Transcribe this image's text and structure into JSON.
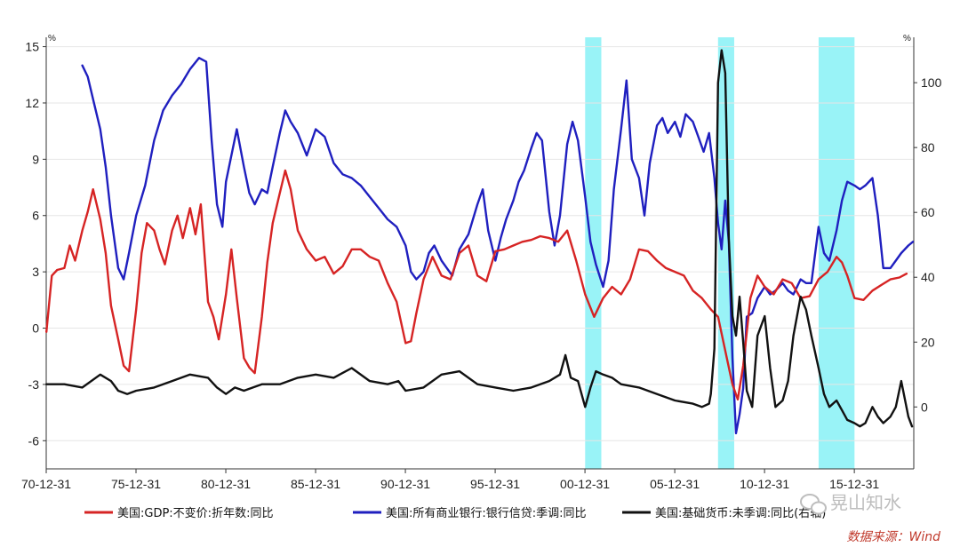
{
  "chart_data": {
    "type": "line",
    "left_unit": "%",
    "right_unit": "%",
    "ylim_left": [
      -7.5,
      15.5
    ],
    "ylim_right": [
      -19.09,
      114
    ],
    "yticks_left": [
      -6,
      -3,
      0,
      3,
      6,
      9,
      12,
      15
    ],
    "yticks_left_labels": [
      "-6",
      "-3",
      "0",
      "3",
      "6",
      "9",
      "12",
      "15"
    ],
    "yticks_right": [
      0,
      20,
      40,
      60,
      80,
      100
    ],
    "yticks_right_labels": [
      "0",
      "20",
      "40",
      "60",
      "80",
      "100"
    ],
    "xlim": [
      1970.99,
      2019.3
    ],
    "xticks": [
      1970.99,
      1975.99,
      1980.99,
      1985.99,
      1990.99,
      1995.99,
      2000.99,
      2005.99,
      2010.99,
      2015.99
    ],
    "xtick_labels": [
      "70-12-31",
      "75-12-31",
      "80-12-31",
      "85-12-31",
      "90-12-31",
      "95-12-31",
      "00-12-31",
      "05-12-31",
      "10-12-31",
      "15-12-31"
    ],
    "shaded_periods": [
      [
        2001.0,
        2001.9
      ],
      [
        2008.4,
        2009.3
      ],
      [
        2014.0,
        2016.0
      ]
    ],
    "shade_color": "#99f3f7",
    "series": [
      {
        "name": "美国:GDP:不变价:折年数:同比",
        "axis": "left",
        "color": "#d62424",
        "x": [
          1971.0,
          1971.3,
          1971.6,
          1972.0,
          1972.3,
          1972.6,
          1973.0,
          1973.3,
          1973.6,
          1974.0,
          1974.3,
          1974.6,
          1975.0,
          1975.3,
          1975.6,
          1976.0,
          1976.3,
          1976.6,
          1977.0,
          1977.3,
          1977.6,
          1978.0,
          1978.3,
          1978.6,
          1979.0,
          1979.3,
          1979.6,
          1980.0,
          1980.3,
          1980.6,
          1981.0,
          1981.3,
          1981.6,
          1982.0,
          1982.3,
          1982.6,
          1983.0,
          1983.3,
          1983.6,
          1984.0,
          1984.3,
          1984.6,
          1985.0,
          1985.5,
          1986.0,
          1986.5,
          1987.0,
          1987.5,
          1988.0,
          1988.5,
          1989.0,
          1989.5,
          1990.0,
          1990.5,
          1991.0,
          1991.3,
          1991.6,
          1992.0,
          1992.5,
          1993.0,
          1993.5,
          1994.0,
          1994.5,
          1995.0,
          1995.5,
          1996.0,
          1996.5,
          1997.0,
          1997.5,
          1998.0,
          1998.5,
          1999.0,
          1999.5,
          2000.0,
          2000.5,
          2001.0,
          2001.5,
          2002.0,
          2002.5,
          2003.0,
          2003.5,
          2004.0,
          2004.5,
          2005.0,
          2005.5,
          2006.0,
          2006.5,
          2007.0,
          2007.5,
          2008.0,
          2008.4,
          2008.8,
          2009.2,
          2009.5,
          2009.8,
          2010.2,
          2010.6,
          2011.0,
          2011.5,
          2012.0,
          2012.5,
          2013.0,
          2013.5,
          2014.0,
          2014.5,
          2015.0,
          2015.3,
          2015.6,
          2016.0,
          2016.5,
          2017.0,
          2017.5,
          2018.0,
          2018.5,
          2018.9
        ],
        "values": [
          -0.2,
          2.8,
          3.1,
          3.2,
          4.4,
          3.6,
          5.2,
          6.2,
          7.4,
          5.8,
          4.0,
          1.2,
          -0.6,
          -2.0,
          -2.3,
          1.0,
          4.0,
          5.6,
          5.2,
          4.2,
          3.4,
          5.2,
          6.0,
          4.8,
          6.4,
          5.0,
          6.6,
          1.4,
          0.6,
          -0.6,
          1.8,
          4.2,
          1.6,
          -1.6,
          -2.1,
          -2.4,
          0.6,
          3.5,
          5.6,
          7.2,
          8.4,
          7.4,
          5.2,
          4.2,
          3.6,
          3.8,
          2.9,
          3.3,
          4.2,
          4.2,
          3.8,
          3.6,
          2.4,
          1.4,
          -0.8,
          -0.7,
          0.8,
          2.6,
          3.8,
          2.8,
          2.6,
          4.0,
          4.4,
          2.8,
          2.5,
          4.1,
          4.2,
          4.4,
          4.6,
          4.7,
          4.9,
          4.8,
          4.6,
          5.2,
          3.6,
          1.8,
          0.6,
          1.6,
          2.2,
          1.8,
          2.6,
          4.2,
          4.1,
          3.6,
          3.2,
          3.0,
          2.8,
          2.0,
          1.6,
          1.0,
          0.6,
          -1.2,
          -3.0,
          -3.8,
          -2.0,
          1.6,
          2.8,
          2.2,
          1.8,
          2.6,
          2.4,
          1.6,
          1.7,
          2.6,
          3.0,
          3.8,
          3.5,
          2.8,
          1.6,
          1.5,
          2.0,
          2.3,
          2.6,
          2.7,
          2.9
        ]
      },
      {
        "name": "美国:所有商业银行:银行信贷:季调:同比",
        "axis": "left",
        "color": "#1f1fbf",
        "x": [
          1973.0,
          1973.3,
          1973.6,
          1974.0,
          1974.3,
          1974.6,
          1975.0,
          1975.3,
          1975.6,
          1976.0,
          1976.5,
          1977.0,
          1977.5,
          1978.0,
          1978.5,
          1979.0,
          1979.5,
          1979.9,
          1980.2,
          1980.5,
          1980.8,
          1981.0,
          1981.3,
          1981.6,
          1982.0,
          1982.3,
          1982.6,
          1983.0,
          1983.3,
          1983.6,
          1984.0,
          1984.3,
          1984.6,
          1985.0,
          1985.5,
          1986.0,
          1986.5,
          1987.0,
          1987.5,
          1988.0,
          1988.5,
          1989.0,
          1989.5,
          1990.0,
          1990.5,
          1991.0,
          1991.3,
          1991.6,
          1992.0,
          1992.3,
          1992.6,
          1993.0,
          1993.3,
          1993.6,
          1994.0,
          1994.5,
          1995.0,
          1995.3,
          1995.6,
          1996.0,
          1996.3,
          1996.6,
          1997.0,
          1997.3,
          1997.6,
          1998.0,
          1998.3,
          1998.6,
          1999.0,
          1999.3,
          1999.6,
          2000.0,
          2000.3,
          2000.6,
          2001.0,
          2001.3,
          2001.6,
          2002.0,
          2002.3,
          2002.6,
          2003.0,
          2003.3,
          2003.6,
          2004.0,
          2004.3,
          2004.6,
          2005.0,
          2005.3,
          2005.6,
          2006.0,
          2006.3,
          2006.6,
          2007.0,
          2007.3,
          2007.6,
          2007.9,
          2008.2,
          2008.4,
          2008.6,
          2008.8,
          2009.0,
          2009.2,
          2009.4,
          2009.6,
          2009.8,
          2010.0,
          2010.3,
          2010.6,
          2011.0,
          2011.3,
          2011.6,
          2012.0,
          2012.3,
          2012.6,
          2013.0,
          2013.3,
          2013.6,
          2014.0,
          2014.3,
          2014.6,
          2015.0,
          2015.3,
          2015.6,
          2016.0,
          2016.3,
          2016.6,
          2017.0,
          2017.3,
          2017.6,
          2018.0,
          2018.3,
          2018.6,
          2019.0,
          2019.25
        ],
        "values": [
          14.0,
          13.4,
          12.2,
          10.6,
          8.6,
          6.0,
          3.2,
          2.6,
          4.0,
          6.0,
          7.6,
          10.0,
          11.6,
          12.4,
          13.0,
          13.8,
          14.4,
          14.2,
          10.0,
          6.6,
          5.4,
          7.8,
          9.2,
          10.6,
          8.6,
          7.2,
          6.6,
          7.4,
          7.2,
          8.6,
          10.4,
          11.6,
          11.0,
          10.4,
          9.2,
          10.6,
          10.2,
          8.8,
          8.2,
          8.0,
          7.6,
          7.0,
          6.4,
          5.8,
          5.4,
          4.4,
          3.0,
          2.6,
          3.0,
          4.0,
          4.4,
          3.6,
          3.2,
          2.8,
          4.2,
          5.0,
          6.6,
          7.4,
          5.2,
          3.6,
          4.8,
          5.8,
          6.8,
          7.8,
          8.4,
          9.6,
          10.4,
          10.0,
          6.2,
          4.4,
          6.0,
          9.8,
          11.0,
          10.0,
          7.0,
          4.6,
          3.4,
          2.2,
          3.6,
          7.4,
          10.6,
          13.2,
          9.0,
          8.0,
          6.0,
          8.8,
          10.8,
          11.2,
          10.4,
          11.0,
          10.2,
          11.4,
          11.0,
          10.2,
          9.4,
          10.4,
          8.0,
          5.6,
          4.2,
          6.8,
          4.6,
          -1.6,
          -5.6,
          -4.6,
          -3.2,
          0.6,
          0.8,
          1.6,
          2.2,
          1.8,
          2.0,
          2.4,
          2.0,
          1.8,
          2.6,
          2.4,
          2.4,
          5.4,
          4.0,
          3.6,
          5.2,
          6.8,
          7.8,
          7.6,
          7.4,
          7.6,
          8.0,
          6.0,
          3.2,
          3.2,
          3.6,
          4.0,
          4.4,
          4.6
        ]
      },
      {
        "name": "美国:基础货币:未季调:同比(右轴)",
        "axis": "right",
        "color": "#111111",
        "x": [
          1971.0,
          1972.0,
          1973.0,
          1974.0,
          1974.6,
          1975.0,
          1975.5,
          1976.0,
          1977.0,
          1978.0,
          1979.0,
          1980.0,
          1980.5,
          1981.0,
          1981.5,
          1982.0,
          1983.0,
          1984.0,
          1985.0,
          1986.0,
          1987.0,
          1988.0,
          1989.0,
          1990.0,
          1990.6,
          1991.0,
          1992.0,
          1993.0,
          1994.0,
          1995.0,
          1996.0,
          1997.0,
          1998.0,
          1999.0,
          1999.6,
          1999.9,
          2000.2,
          2000.6,
          2001.0,
          2001.3,
          2001.6,
          2002.0,
          2002.5,
          2003.0,
          2004.0,
          2005.0,
          2006.0,
          2007.0,
          2007.5,
          2007.9,
          2008.0,
          2008.2,
          2008.4,
          2008.6,
          2008.8,
          2009.0,
          2009.2,
          2009.4,
          2009.6,
          2009.8,
          2010.0,
          2010.3,
          2010.6,
          2011.0,
          2011.3,
          2011.6,
          2012.0,
          2012.3,
          2012.6,
          2013.0,
          2013.3,
          2013.6,
          2014.0,
          2014.3,
          2014.6,
          2015.0,
          2015.3,
          2015.6,
          2016.0,
          2016.3,
          2016.6,
          2017.0,
          2017.3,
          2017.6,
          2018.0,
          2018.3,
          2018.6,
          2019.0,
          2019.2
        ],
        "values": [
          7,
          7,
          6,
          10,
          8,
          5,
          4,
          5,
          6,
          8,
          10,
          9,
          6,
          4,
          6,
          5,
          7,
          7,
          9,
          10,
          9,
          12,
          8,
          7,
          8,
          5,
          6,
          10,
          11,
          7,
          6,
          5,
          6,
          8,
          10,
          16,
          9,
          8,
          0,
          6,
          11,
          10,
          9,
          7,
          6,
          4,
          2,
          1,
          0,
          1,
          4,
          18,
          100,
          110,
          103,
          52,
          28,
          22,
          34,
          20,
          5,
          0,
          22,
          28,
          12,
          0,
          2,
          8,
          22,
          34,
          30,
          22,
          12,
          4,
          0,
          2,
          -1,
          -4,
          -5,
          -6,
          -5,
          0,
          -3,
          -5,
          -3,
          0,
          8,
          -3,
          -6
        ]
      }
    ],
    "legend": [
      {
        "label": "美国:GDP:不变价:折年数:同比",
        "color": "#d62424"
      },
      {
        "label": "美国:所有商业银行:银行信贷:季调:同比",
        "color": "#1f1fbf"
      },
      {
        "label": "美国:基础货币:未季调:同比(右轴)",
        "color": "#111111"
      }
    ],
    "source": "数据来源：Wind",
    "watermark": "晃山知水"
  }
}
